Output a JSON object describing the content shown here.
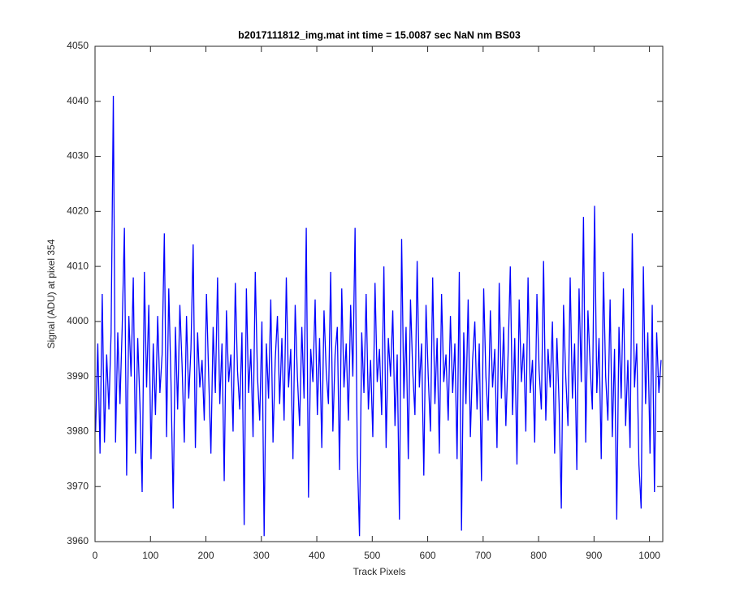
{
  "chart_data": {
    "type": "line",
    "title": "b2017111812_img.mat int time = 15.0087 sec  NaN nm BS03",
    "x_label": "Track Pixels",
    "y_label": "Signal (ADU) at pixel 354",
    "color": "#0000ff",
    "xlim": [
      0,
      1024
    ],
    "xticks": [
      0,
      100,
      200,
      300,
      400,
      500,
      600,
      700,
      800,
      900,
      1000
    ],
    "ylim": [
      3960,
      4050
    ],
    "yticks": [
      3960,
      3970,
      3980,
      3990,
      4000,
      4010,
      4020,
      4030,
      4040,
      4050
    ],
    "grid": false,
    "x": [
      1,
      5,
      9,
      13,
      17,
      21,
      25,
      29,
      33,
      37,
      41,
      45,
      49,
      53,
      57,
      61,
      65,
      69,
      73,
      77,
      81,
      85,
      89,
      93,
      97,
      101,
      105,
      109,
      113,
      117,
      121,
      125,
      129,
      133,
      137,
      141,
      145,
      149,
      153,
      157,
      161,
      165,
      169,
      173,
      177,
      181,
      185,
      189,
      193,
      197,
      201,
      205,
      209,
      213,
      217,
      221,
      225,
      229,
      233,
      237,
      241,
      245,
      249,
      253,
      257,
      261,
      265,
      269,
      273,
      277,
      281,
      285,
      289,
      293,
      297,
      301,
      305,
      309,
      313,
      317,
      321,
      325,
      329,
      333,
      337,
      341,
      345,
      349,
      353,
      357,
      361,
      365,
      369,
      373,
      377,
      381,
      385,
      389,
      393,
      397,
      401,
      405,
      409,
      413,
      417,
      421,
      425,
      429,
      433,
      437,
      441,
      445,
      449,
      453,
      457,
      461,
      465,
      469,
      473,
      477,
      481,
      485,
      489,
      493,
      497,
      501,
      505,
      509,
      513,
      517,
      521,
      525,
      529,
      533,
      537,
      541,
      545,
      549,
      553,
      557,
      561,
      565,
      569,
      573,
      577,
      581,
      585,
      589,
      593,
      597,
      601,
      605,
      609,
      613,
      617,
      621,
      625,
      629,
      633,
      637,
      641,
      645,
      649,
      653,
      657,
      661,
      665,
      669,
      673,
      677,
      681,
      685,
      689,
      693,
      697,
      701,
      705,
      709,
      713,
      717,
      721,
      725,
      729,
      733,
      737,
      741,
      745,
      749,
      753,
      757,
      761,
      765,
      769,
      773,
      777,
      781,
      785,
      789,
      793,
      797,
      801,
      805,
      809,
      813,
      817,
      821,
      825,
      829,
      833,
      837,
      841,
      845,
      849,
      853,
      857,
      861,
      865,
      869,
      873,
      877,
      881,
      885,
      889,
      893,
      897,
      901,
      905,
      909,
      913,
      917,
      921,
      925,
      929,
      933,
      937,
      941,
      945,
      949,
      953,
      957,
      961,
      965,
      969,
      973,
      977,
      981,
      985,
      989,
      993,
      997,
      1001,
      1005,
      1009,
      1013,
      1017,
      1021
    ],
    "values": [
      3980,
      3996,
      3976,
      4005,
      3978,
      3994,
      3984,
      3998,
      4041,
      3978,
      3998,
      3985,
      3999,
      4017,
      3972,
      4001,
      3990,
      4008,
      3976,
      3997,
      3985,
      3969,
      4009,
      3988,
      4003,
      3975,
      3996,
      3983,
      4001,
      3987,
      3994,
      4016,
      3979,
      4006,
      3989,
      3966,
      3999,
      3984,
      4003,
      3992,
      3978,
      4001,
      3986,
      3995,
      4014,
      3977,
      3998,
      3988,
      3993,
      3982,
      4005,
      3990,
      3976,
      3999,
      3987,
      4008,
      3985,
      3996,
      3971,
      4002,
      3989,
      3994,
      3980,
      4007,
      3991,
      3984,
      3998,
      3963,
      4006,
      3987,
      3995,
      3979,
      4009,
      3990,
      3982,
      4000,
      3961,
      3996,
      3986,
      4004,
      3978,
      3993,
      4001,
      3985,
      3997,
      3982,
      4008,
      3988,
      3995,
      3975,
      4003,
      3990,
      3981,
      3999,
      3986,
      4017,
      3968,
      3995,
      3989,
      4004,
      3983,
      3997,
      3977,
      4002,
      3991,
      3985,
      4009,
      3980,
      3994,
      3999,
      3973,
      4006,
      3988,
      3996,
      3982,
      4003,
      3990,
      4017,
      3976,
      3961,
      3998,
      3987,
      4005,
      3984,
      3993,
      3979,
      4007,
      3989,
      3995,
      3983,
      4010,
      3977,
      3997,
      3990,
      4002,
      3981,
      3994,
      3964,
      4015,
      3986,
      3999,
      3975,
      4004,
      3991,
      3983,
      4011,
      3988,
      3996,
      3972,
      4003,
      3990,
      3980,
      4008,
      3985,
      3997,
      3976,
      4005,
      3989,
      3994,
      3982,
      4001,
      3987,
      3996,
      3975,
      4009,
      3962,
      3998,
      3985,
      4004,
      3979,
      3993,
      4000,
      3984,
      3996,
      3971,
      4006,
      3990,
      3982,
      4002,
      3988,
      3995,
      3977,
      4007,
      3986,
      3999,
      3981,
      3994,
      4010,
      3983,
      3997,
      3974,
      4004,
      3989,
      3996,
      3980,
      4008,
      3987,
      3993,
      3978,
      4005,
      3991,
      3984,
      4011,
      3982,
      3995,
      3988,
      4000,
      3976,
      3997,
      3985,
      3966,
      4003,
      3990,
      3981,
      4008,
      3986,
      3996,
      3973,
      4006,
      3989,
      4019,
      3978,
      4002,
      3992,
      3984,
      4021,
      3987,
      3997,
      3975,
      4009,
      3990,
      3982,
      4004,
      3979,
      3995,
      3964,
      3999,
      3986,
      4006,
      3981,
      3993,
      3977,
      4016,
      3988,
      3996,
      3974,
      3966,
      4010,
      3985,
      3998,
      3976,
      4003,
      3969,
      3998,
      3987,
      3993
    ]
  }
}
